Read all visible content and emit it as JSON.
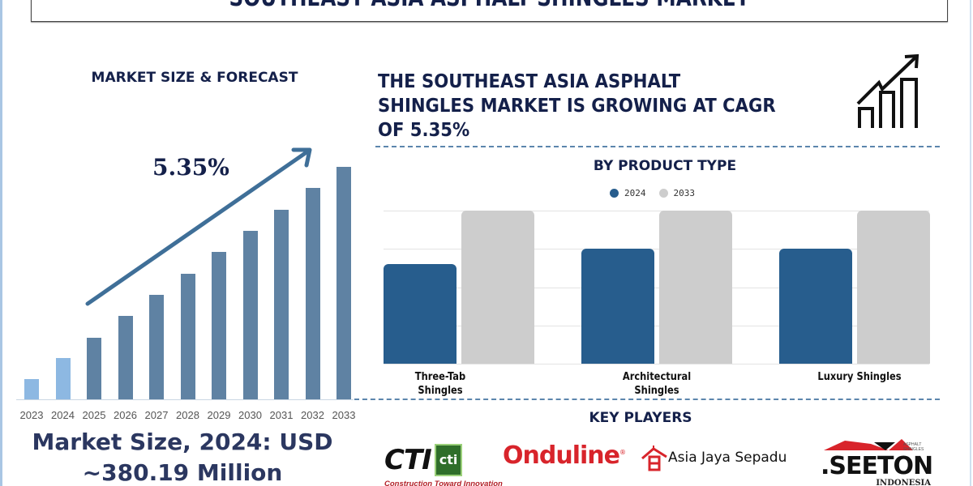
{
  "header": {
    "title": "SOUTHEAST ASIA ASPHALT SHINGLES MARKET"
  },
  "left_panel": {
    "title": "MARKET SIZE & FORECAST",
    "cagr_label": "5.35%",
    "market_size_line1": "Market Size, 2024: USD",
    "market_size_line2": "~380.19 Million"
  },
  "right_panel": {
    "headline": "THE SOUTHEAST ASIA ASPHALT SHINGLES MARKET IS GROWING AT CAGR OF 5.35%",
    "headline_lines": [
      "THE SOUTHEAST ASIA ASPHALT",
      "SHINGLES MARKET IS GROWING AT CAGR",
      "OF 5.35%"
    ],
    "product_section_title": "BY PRODUCT TYPE",
    "legend": [
      {
        "label": "2024",
        "color": "#275d8d"
      },
      {
        "label": "2033",
        "color": "#cdcdcd"
      }
    ],
    "categories": [
      {
        "line1": "Three-Tab",
        "line2": "Shingles"
      },
      {
        "line1": "Architectural",
        "line2": "Shingles"
      },
      {
        "line1": "Luxury Shingles",
        "line2": ""
      }
    ],
    "key_players_title": "KEY PLAYERS",
    "key_players": [
      {
        "name": "CTI",
        "tagline": "Construction Toward Innovation",
        "badge": "cti"
      },
      {
        "name": "Onduline"
      },
      {
        "name": "Asia Jaya Sepadu"
      },
      {
        "name": ".SEETON",
        "subtitle": "INDONESIA",
        "tag": "ASPHALT SHINGLES"
      }
    ]
  },
  "colors": {
    "title_navy": "#14204a",
    "bar_historic": "#8db8e2",
    "bar_forecast": "#5f82a3",
    "arrow": "#3f6f98",
    "dash": "#5c86ad",
    "series_2024": "#275d8d",
    "series_2033": "#cdcdcd"
  },
  "chart_data": [
    {
      "type": "bar",
      "title": "MARKET SIZE & FORECAST",
      "annotation": "5.35% (CAGR, arrow trend)",
      "categories": [
        "2023",
        "2024",
        "2025",
        "2026",
        "2027",
        "2028",
        "2029",
        "2030",
        "2031",
        "2032",
        "2033"
      ],
      "values": [
        25,
        51,
        76,
        103,
        129,
        155,
        182,
        208,
        234,
        261,
        287
      ],
      "value_unit": "relative bar height (px, no y-axis shown)",
      "historic": [
        "2023",
        "2024"
      ],
      "forecast": [
        "2025",
        "2026",
        "2027",
        "2028",
        "2029",
        "2030",
        "2031",
        "2032",
        "2033"
      ],
      "xlabel": "",
      "ylabel": "",
      "grid": false,
      "legend": null
    },
    {
      "type": "bar",
      "title": "BY PRODUCT TYPE",
      "categories": [
        "Three-Tab Shingles",
        "Architectural Shingles",
        "Luxury Shingles"
      ],
      "series": [
        {
          "name": "2024",
          "values": [
            2.6,
            3.0,
            3.0
          ]
        },
        {
          "name": "2033",
          "values": [
            4.0,
            4.0,
            4.0
          ]
        }
      ],
      "ylim": [
        0,
        4
      ],
      "yticks_hidden": true,
      "grid": true,
      "legend_position": "top-center",
      "xlabel": "",
      "ylabel": ""
    }
  ]
}
